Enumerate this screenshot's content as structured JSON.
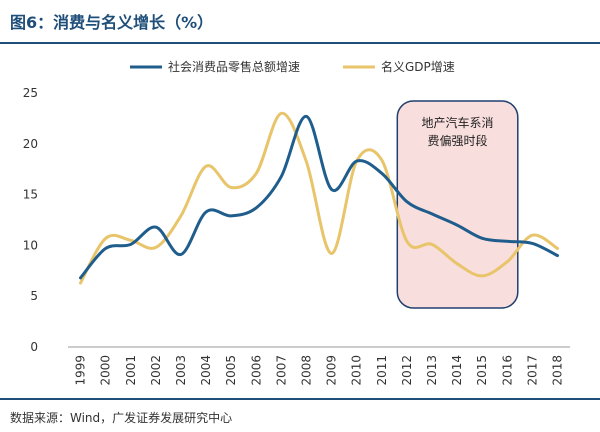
{
  "title": "图6：消费与名义增长（%）",
  "source": "数据来源：Wind，广发证券发展研究中心",
  "colors": {
    "series1": "#1f5d8c",
    "series2": "#e8c46a",
    "highlight_fill": "#f9dede",
    "highlight_border": "#1f3f6e",
    "frame": "#1f4e79"
  },
  "chart_data": {
    "type": "line",
    "title": "消费与名义增长（%）",
    "x": [
      "1999",
      "2000",
      "2001",
      "2002",
      "2003",
      "2004",
      "2005",
      "2006",
      "2007",
      "2008",
      "2009",
      "2010",
      "2011",
      "2012",
      "2013",
      "2014",
      "2015",
      "2016",
      "2017",
      "2018"
    ],
    "ylim": [
      0,
      25
    ],
    "yticks": [
      0,
      5,
      10,
      15,
      20,
      25
    ],
    "grid": false,
    "legend_position": "top",
    "series": [
      {
        "name": "社会消费品零售总额增速",
        "color": "#1f5d8c",
        "values": [
          6.8,
          9.7,
          10.1,
          11.8,
          9.1,
          13.3,
          12.9,
          13.7,
          16.8,
          22.7,
          15.5,
          18.3,
          17.1,
          14.3,
          13.1,
          12.0,
          10.7,
          10.4,
          10.2,
          9.0
        ]
      },
      {
        "name": "名义GDP增速",
        "color": "#e8c46a",
        "values": [
          6.3,
          10.7,
          10.5,
          9.8,
          12.9,
          17.8,
          15.7,
          17.1,
          23.0,
          18.2,
          9.2,
          18.3,
          18.4,
          10.4,
          10.1,
          8.2,
          7.0,
          8.4,
          11.0,
          9.7
        ]
      }
    ],
    "annotation": {
      "text_line1": "地产汽车系消",
      "text_line2": "费偏强时段",
      "x_start": "2012",
      "x_end": "2016"
    }
  }
}
